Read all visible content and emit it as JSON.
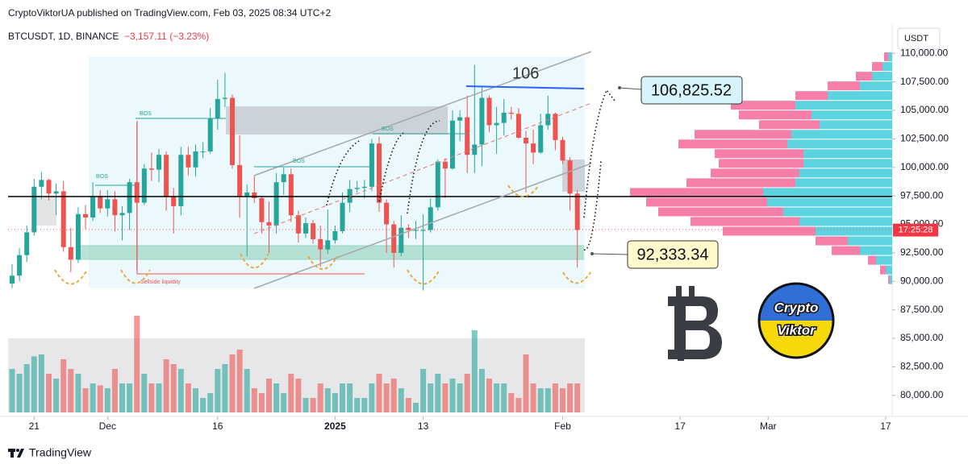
{
  "header": {
    "published": "CryptoViktorUA published on TradingView.com, Feb 03, 2025 08:34 UTC+2",
    "symbol": "BTCUSDT, 1D, BINANCE",
    "change": "−3,157.11 (−3.23%)",
    "currency": "USDT"
  },
  "footer": {
    "brand": "TradingView"
  },
  "chart_data": {
    "type": "candlestick",
    "x": [
      0,
      1,
      2,
      3,
      4,
      5,
      6,
      7,
      8,
      9,
      10,
      11,
      12,
      13,
      14,
      15,
      16,
      17,
      18,
      19,
      20,
      21,
      22,
      23,
      24,
      25,
      26,
      27,
      28,
      29,
      30,
      31,
      32,
      33,
      34,
      35,
      36,
      37,
      38,
      39,
      40,
      41,
      42,
      43,
      44,
      45,
      46,
      47,
      48,
      49,
      50,
      51,
      52,
      53,
      54,
      55,
      56,
      57,
      58,
      59,
      60,
      61,
      62,
      63,
      64,
      65,
      66,
      67,
      68,
      69,
      70,
      71,
      72,
      73,
      74,
      75,
      76,
      77
    ],
    "xlim": [
      -1,
      120
    ],
    "xticks": [
      {
        "value": 3,
        "label": "21"
      },
      {
        "value": 13,
        "label": "Dec"
      },
      {
        "value": 28,
        "label": "16"
      },
      {
        "value": 44,
        "label": "2025"
      },
      {
        "value": 56,
        "label": "13"
      },
      {
        "value": 75,
        "label": "Feb"
      },
      {
        "value": 91,
        "label": "17"
      },
      {
        "value": 103,
        "label": "Mar"
      },
      {
        "value": 119,
        "label": "17"
      }
    ],
    "open": [
      89800,
      90500,
      92300,
      94300,
      98300,
      98900,
      97700,
      97900,
      93000,
      91900,
      95900,
      95600,
      97400,
      96400,
      97200,
      95800,
      96000,
      98700,
      96900,
      99900,
      99800,
      101100,
      97400,
      96600,
      101100,
      100000,
      101400,
      101400,
      104300,
      106000,
      106100,
      100200,
      97500,
      97800,
      97300,
      95200,
      94900,
      98700,
      99400,
      95800,
      94200,
      95100,
      93700,
      92800,
      93600,
      94400,
      96900,
      98100,
      98200,
      98300,
      102100,
      96900,
      95000,
      92500,
      94700,
      94500,
      94500,
      94500,
      96500,
      100500,
      99900,
      104100,
      104400,
      101100,
      102000,
      106100,
      103700,
      103900,
      104800,
      104700,
      102600,
      102100,
      101300,
      103700,
      104700,
      102400,
      100600,
      97700
    ],
    "high": [
      91500,
      92900,
      94900,
      99000,
      99600,
      99000,
      98600,
      98800,
      94700,
      96500,
      96700,
      98700,
      98000,
      98000,
      97900,
      96600,
      99000,
      104000,
      100300,
      101300,
      101600,
      101400,
      98200,
      101800,
      101800,
      102000,
      102200,
      105200,
      107700,
      108300,
      106400,
      102800,
      98500,
      99300,
      97400,
      97000,
      99500,
      100000,
      99900,
      96200,
      95600,
      95400,
      94900,
      96300,
      94900,
      97800,
      98900,
      98800,
      98900,
      102500,
      102700,
      97200,
      95300,
      95800,
      95000,
      95300,
      95900,
      97300,
      100700,
      100800,
      105000,
      105000,
      106300,
      109000,
      107000,
      106300,
      105300,
      106000,
      105300,
      105200,
      103200,
      103300,
      104700,
      106300,
      104800,
      102700,
      100900,
      98000
    ],
    "low": [
      89400,
      90000,
      91700,
      94000,
      97200,
      97100,
      95800,
      92600,
      90800,
      91600,
      94600,
      95300,
      96000,
      95700,
      94400,
      93600,
      94500,
      91000,
      96700,
      98800,
      98700,
      96200,
      94200,
      95800,
      99300,
      99200,
      100800,
      101200,
      103300,
      105300,
      99900,
      95600,
      92200,
      96900,
      94200,
      92500,
      94200,
      97600,
      95200,
      93400,
      93800,
      93300,
      91300,
      92400,
      93300,
      94200,
      96100,
      97800,
      97300,
      97900,
      96100,
      92500,
      91200,
      92200,
      93800,
      93700,
      89200,
      94300,
      96200,
      97300,
      99800,
      102300,
      99500,
      99500,
      100100,
      103100,
      101200,
      102800,
      104200,
      102500,
      97800,
      100300,
      101200,
      103300,
      101500,
      100300,
      96200,
      91200
    ],
    "close": [
      90500,
      92300,
      94300,
      98300,
      98900,
      97700,
      97900,
      93000,
      91900,
      95900,
      95600,
      97400,
      96400,
      97200,
      95800,
      96000,
      98700,
      96900,
      99900,
      99800,
      101100,
      97400,
      96600,
      101100,
      100000,
      101400,
      101400,
      104300,
      106000,
      106100,
      100200,
      97500,
      97800,
      97300,
      95200,
      94900,
      98700,
      99400,
      95800,
      94200,
      95100,
      93700,
      92800,
      93600,
      94400,
      96900,
      98100,
      98200,
      98300,
      102100,
      96900,
      95000,
      92500,
      94700,
      94500,
      94500,
      94500,
      96500,
      100500,
      99900,
      104100,
      104400,
      101100,
      102000,
      106100,
      103700,
      103900,
      104800,
      104700,
      102600,
      102100,
      101300,
      103700,
      104700,
      102400,
      100600,
      97700,
      94500
    ],
    "volume": [
      45,
      40,
      50,
      58,
      60,
      40,
      35,
      55,
      45,
      40,
      25,
      30,
      28,
      25,
      45,
      30,
      30,
      100,
      40,
      30,
      30,
      55,
      50,
      45,
      30,
      25,
      15,
      20,
      45,
      50,
      60,
      65,
      45,
      25,
      20,
      35,
      30,
      20,
      40,
      35,
      15,
      15,
      30,
      25,
      20,
      30,
      30,
      15,
      15,
      30,
      40,
      30,
      35,
      25,
      15,
      10,
      45,
      30,
      40,
      30,
      35,
      30,
      40,
      85,
      45,
      35,
      30,
      30,
      20,
      15,
      60,
      30,
      25,
      25,
      30,
      25,
      30,
      30
    ],
    "up_color": "#26a69a",
    "down_color": "#ef5350",
    "ylim": [
      78500,
      112000
    ],
    "yticks": [
      {
        "value": 110000,
        "label": "110,000.00"
      },
      {
        "value": 107500,
        "label": "107,500.00"
      },
      {
        "value": 105000,
        "label": "105,000.00"
      },
      {
        "value": 102500,
        "label": "102,500.00"
      },
      {
        "value": 100000,
        "label": "100,000.00"
      },
      {
        "value": 97500,
        "label": "97,500.00"
      },
      {
        "value": 95000,
        "label": "95,000.00"
      },
      {
        "value": 92500,
        "label": "92,500.00"
      },
      {
        "value": 90000,
        "label": "90,000.00"
      },
      {
        "value": 87500,
        "label": "87,500.00"
      },
      {
        "value": 85000,
        "label": "85,000.00"
      },
      {
        "value": 82500,
        "label": "82,500.00"
      },
      {
        "value": 80000,
        "label": "80,000.00"
      }
    ],
    "countdown": "17:25:28",
    "volume_profile": {
      "levels": [
        109700,
        108850,
        108000,
        107150,
        106300,
        105450,
        104600,
        103750,
        102900,
        102050,
        101200,
        100350,
        99500,
        98650,
        97800,
        96950,
        96100,
        95250,
        94400,
        93550,
        92700,
        91850,
        91000,
        90150
      ],
      "buy": [
        5,
        12,
        25,
        40,
        80,
        120,
        100,
        90,
        125,
        130,
        110,
        110,
        115,
        120,
        160,
        155,
        135,
        115,
        95,
        55,
        40,
        20,
        8,
        3
      ],
      "sell": [
        5,
        13,
        20,
        40,
        40,
        80,
        90,
        75,
        120,
        135,
        110,
        105,
        110,
        135,
        165,
        150,
        155,
        135,
        115,
        40,
        35,
        10,
        7,
        2
      ],
      "buy_color": "#5cd3df",
      "sell_color": "#f57fa8"
    },
    "annotations": {
      "target_level": "106",
      "high_price": "106,825.52",
      "low_price": "92,333.34",
      "bos": [
        "BOS",
        "BOS",
        "BOS",
        "BOS"
      ],
      "liquidity": "Sellside liquidity",
      "logo_top": "Crypto",
      "logo_bottom": "Viktor"
    }
  }
}
